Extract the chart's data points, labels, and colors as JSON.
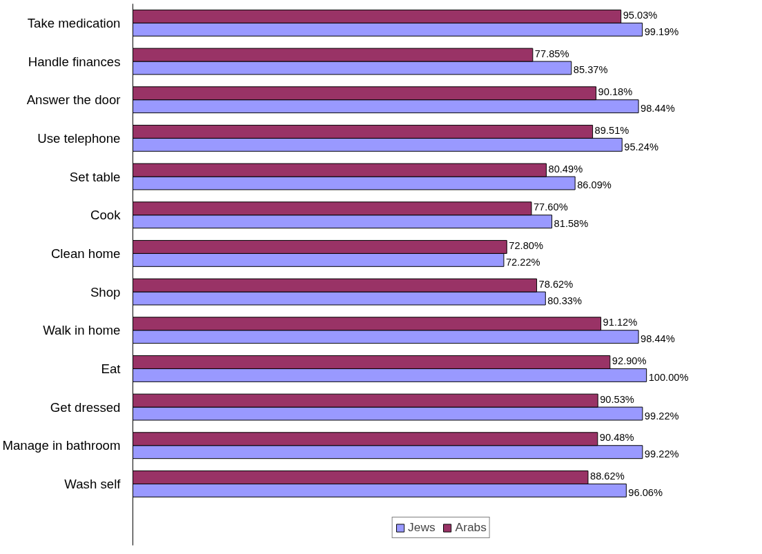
{
  "chart_data": {
    "type": "bar",
    "orientation": "horizontal",
    "categories": [
      "Take medication",
      "Handle finances",
      "Answer the door",
      "Use telephone",
      "Set table",
      "Cook",
      "Clean home",
      "Shop",
      "Walk in home",
      "Eat",
      "Get dressed",
      "Manage in bathroom",
      "Wash self"
    ],
    "series": [
      {
        "name": "Jews",
        "color": "#9999ff",
        "values": [
          99.19,
          85.37,
          98.44,
          95.24,
          86.09,
          81.58,
          72.22,
          80.33,
          98.44,
          100.0,
          99.22,
          99.22,
          96.06
        ],
        "value_labels": [
          "99.19%",
          "85.37%",
          "98.44%",
          "95.24%",
          "86.09%",
          "81.58%",
          "72.22%",
          "80.33%",
          "98.44%",
          "100.00%",
          "99.22%",
          "99.22%",
          "96.06%"
        ]
      },
      {
        "name": "Arabs",
        "color": "#993366",
        "values": [
          95.03,
          77.85,
          90.18,
          89.51,
          80.49,
          77.6,
          72.8,
          78.62,
          91.12,
          92.9,
          90.53,
          90.48,
          88.62
        ],
        "value_labels": [
          "95.03%",
          "77.85%",
          "90.18%",
          "89.51%",
          "80.49%",
          "77.60%",
          "72.80%",
          "78.62%",
          "91.12%",
          "92.90%",
          "90.53%",
          "90.48%",
          "88.62%"
        ]
      }
    ],
    "tick_labels": "y",
    "grid": false,
    "legend": "bottom"
  }
}
